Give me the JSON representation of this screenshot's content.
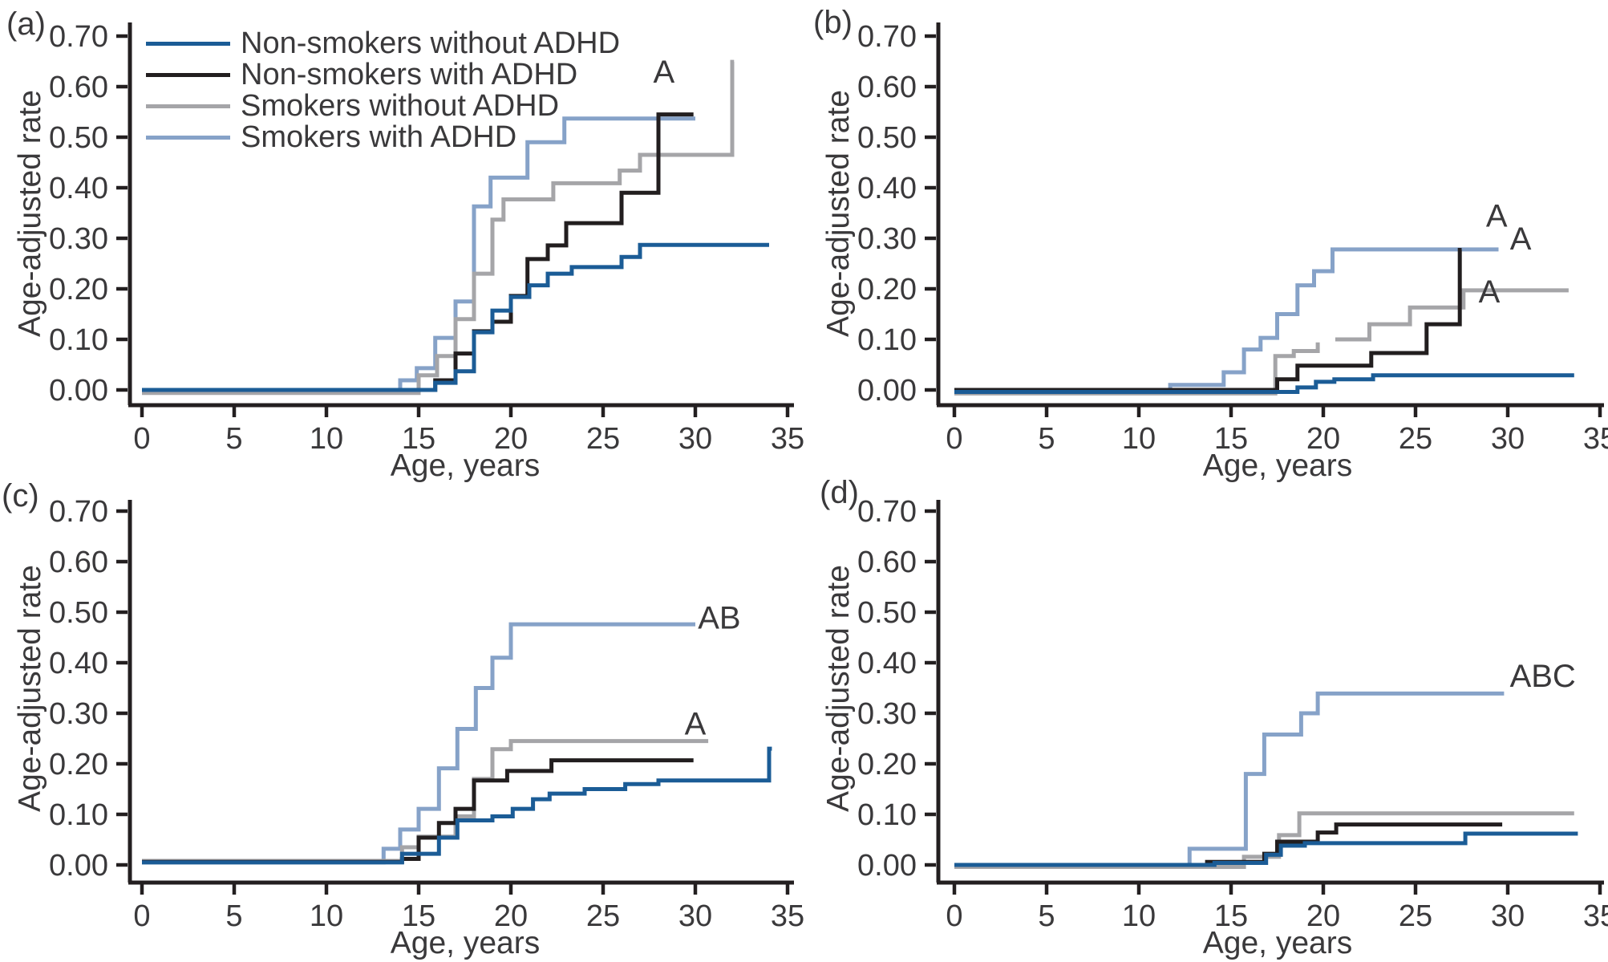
{
  "figure": {
    "legend": {
      "items": [
        {
          "label": "Non-smokers without ADHD",
          "color": "darkblue"
        },
        {
          "label": "Non-smokers with ADHD",
          "color": "black"
        },
        {
          "label": "Smokers without ADHD",
          "color": "gray"
        },
        {
          "label": "Smokers with ADHD",
          "color": "lightblue"
        }
      ]
    },
    "colors": {
      "darkblue": "#1B5C96",
      "black": "#221E1F",
      "gray": "#A5A5A8",
      "lightblue": "#86A2C8",
      "axis": "#231F20",
      "text": "#3A393B"
    }
  },
  "chart_data": [
    {
      "id": "a",
      "panel_label": "(a)",
      "type": "line",
      "subtype": "step-survival",
      "xlabel": "Age, years",
      "ylabel": "Age-adjusted rate",
      "xlim": [
        0,
        35
      ],
      "ylim": [
        0,
        0.7
      ],
      "xticks": [
        "0",
        "5",
        "10",
        "15",
        "20",
        "25",
        "30",
        "35"
      ],
      "yticks": [
        "0.00",
        "0.10",
        "0.20",
        "0.30",
        "0.40",
        "0.50",
        "0.60",
        "0.70"
      ],
      "grid": false,
      "legend_position": "upper-left",
      "annotations": [
        {
          "text": "A",
          "age": 28.3,
          "value": 0.63
        }
      ],
      "series": [
        {
          "name": "Smokers with ADHD",
          "color": "lightblue",
          "segments": [
            {
              "points": [
                [
                  0,
                  0
                ],
                [
                  14,
                  0.019
                ],
                [
                  14.9,
                  0.043
                ],
                [
                  15.9,
                  0.103
                ],
                [
                  17,
                  0.175
                ],
                [
                  18,
                  0.363
                ],
                [
                  18.9,
                  0.42
                ],
                [
                  20.9,
                  0.49
                ],
                [
                  22.9,
                  0.537
                ]
              ],
              "end": 30.0
            }
          ]
        },
        {
          "name": "Smokers without ADHD",
          "color": "gray",
          "segments": [
            {
              "points": [
                [
                  0,
                  -0.006
                ],
                [
                  15,
                  0.029
                ],
                [
                  16,
                  0.067
                ],
                [
                  17,
                  0.14
                ],
                [
                  18,
                  0.23
                ],
                [
                  19,
                  0.337
                ],
                [
                  19.6,
                  0.377
                ],
                [
                  22.3,
                  0.409
                ],
                [
                  25.9,
                  0.434
                ],
                [
                  27,
                  0.465
                ],
                [
                  32,
                  0.649
                ]
              ],
              "end": 32.1
            }
          ]
        },
        {
          "name": "Non-smokers with ADHD",
          "color": "black",
          "segments": [
            {
              "points": [
                [
                  0,
                  0
                ],
                [
                  15.9,
                  0.019
                ],
                [
                  17,
                  0.072
                ],
                [
                  18,
                  0.116
                ],
                [
                  19,
                  0.135
                ],
                [
                  20,
                  0.186
                ],
                [
                  20.9,
                  0.259
                ],
                [
                  22,
                  0.286
                ],
                [
                  23,
                  0.33
                ],
                [
                  26,
                  0.39
                ],
                [
                  28,
                  0.545
                ]
              ],
              "end": 29.9
            }
          ]
        },
        {
          "name": "Non-smokers without ADHD",
          "color": "darkblue",
          "segments": [
            {
              "points": [
                [
                  0,
                  0
                ],
                [
                  15.9,
                  0.014
                ],
                [
                  17,
                  0.037
                ],
                [
                  18,
                  0.114
                ],
                [
                  19,
                  0.157
                ],
                [
                  20,
                  0.184
                ],
                [
                  21,
                  0.207
                ],
                [
                  22,
                  0.23
                ],
                [
                  23.3,
                  0.243
                ],
                [
                  26,
                  0.263
                ],
                [
                  27,
                  0.287
                ]
              ],
              "end": 34.0
            }
          ]
        }
      ]
    },
    {
      "id": "b",
      "panel_label": "(b)",
      "type": "line",
      "subtype": "step-survival",
      "xlabel": "Age, years",
      "ylabel": "Age-adjusted rate",
      "xlim": [
        0,
        35
      ],
      "ylim": [
        0,
        0.7
      ],
      "xticks": [
        "0",
        "5",
        "10",
        "15",
        "20",
        "25",
        "30",
        "35"
      ],
      "yticks": [
        "0.00",
        "0.10",
        "0.20",
        "0.30",
        "0.40",
        "0.50",
        "0.60",
        "0.70"
      ],
      "grid": false,
      "legend_position": "none",
      "annotations": [
        {
          "text": "A",
          "age": 29.4,
          "value": 0.345
        },
        {
          "text": "A",
          "age": 30.7,
          "value": 0.3
        },
        {
          "text": "A",
          "age": 29.0,
          "value": 0.195
        }
      ],
      "series": [
        {
          "name": "Smokers with ADHD",
          "color": "lightblue",
          "segments": [
            {
              "points": [
                [
                  0,
                  0
                ],
                [
                  11.7,
                  0.01
                ],
                [
                  14.6,
                  0.035
                ],
                [
                  15.7,
                  0.08
                ],
                [
                  16.6,
                  0.103
                ],
                [
                  17.5,
                  0.15
                ],
                [
                  18.6,
                  0.207
                ],
                [
                  19.5,
                  0.235
                ],
                [
                  20.5,
                  0.278
                ]
              ],
              "end": 29.5
            }
          ]
        },
        {
          "name": "Smokers without ADHD",
          "color": "gray",
          "segments": [
            {
              "points": [
                [
                  0,
                  -0.007
                ],
                [
                  17.4,
                  0.067
                ],
                [
                  18.4,
                  0.077
                ],
                [
                  19.7,
                  0.094
                ]
              ],
              "end": 19.7
            },
            {
              "points": [
                [
                  20.65,
                  0.1
                ],
                [
                  22.5,
                  0.13
                ],
                [
                  24.7,
                  0.163
                ],
                [
                  27.6,
                  0.197
                ]
              ],
              "end": 33.3
            }
          ]
        },
        {
          "name": "Non-smokers with ADHD",
          "color": "black",
          "segments": [
            {
              "points": [
                [
                  0,
                  0
                ],
                [
                  17.5,
                  0.021
                ],
                [
                  18.6,
                  0.048
                ],
                [
                  22.6,
                  0.073
                ],
                [
                  25.6,
                  0.13
                ],
                [
                  27.4,
                  0.277
                ]
              ],
              "end": 27.5
            }
          ]
        },
        {
          "name": "Non-smokers without ADHD",
          "color": "darkblue",
          "segments": [
            {
              "points": [
                [
                  0,
                  -0.004
                ],
                [
                  18.6,
                  0.005
                ],
                [
                  19.6,
                  0.016
                ],
                [
                  20.6,
                  0.021
                ],
                [
                  22.7,
                  0.029
                ]
              ],
              "end": 33.6
            }
          ]
        }
      ]
    },
    {
      "id": "c",
      "panel_label": "(c)",
      "type": "line",
      "subtype": "step-survival",
      "xlabel": "Age, years",
      "ylabel": "Age-adjusted rate",
      "xlim": [
        0,
        35
      ],
      "ylim": [
        0,
        0.7
      ],
      "xticks": [
        "0",
        "5",
        "10",
        "15",
        "20",
        "25",
        "30",
        "35"
      ],
      "yticks": [
        "0.00",
        "0.10",
        "0.20",
        "0.30",
        "0.40",
        "0.50",
        "0.60",
        "0.70"
      ],
      "grid": false,
      "legend_position": "none",
      "annotations": [
        {
          "text": "AB",
          "age": 31.3,
          "value": 0.49
        },
        {
          "text": "A",
          "age": 30.0,
          "value": 0.28
        }
      ],
      "series": [
        {
          "name": "Smokers with ADHD",
          "color": "lightblue",
          "segments": [
            {
              "points": [
                [
                  0,
                  0.005
                ],
                [
                  13.1,
                  0.032
                ],
                [
                  14,
                  0.07
                ],
                [
                  15,
                  0.111
                ],
                [
                  16.1,
                  0.191
                ],
                [
                  17.1,
                  0.269
                ],
                [
                  18.1,
                  0.35
                ],
                [
                  19,
                  0.41
                ],
                [
                  20,
                  0.476
                ]
              ],
              "end": 30.0
            }
          ]
        },
        {
          "name": "Smokers without ADHD",
          "color": "gray",
          "segments": [
            {
              "points": [
                [
                  0,
                  0.008
                ],
                [
                  14.1,
                  0.035
                ],
                [
                  15,
                  0.056
                ],
                [
                  17,
                  0.096
                ],
                [
                  18,
                  0.17
                ],
                [
                  19,
                  0.229
                ],
                [
                  20,
                  0.245
                ]
              ],
              "end": 30.7
            }
          ]
        },
        {
          "name": "Non-smokers with ADHD",
          "color": "black",
          "segments": [
            {
              "points": [
                [
                  0,
                  0.006
                ],
                [
                  14.1,
                  0.012
                ],
                [
                  15,
                  0.054
                ],
                [
                  16.1,
                  0.083
                ],
                [
                  17,
                  0.111
                ],
                [
                  18,
                  0.167
                ],
                [
                  19.8,
                  0.186
                ],
                [
                  22.2,
                  0.207
                ]
              ],
              "end": 29.9
            }
          ]
        },
        {
          "name": "Non-smokers without ADHD",
          "color": "darkblue",
          "segments": [
            {
              "points": [
                [
                  0,
                  0.005
                ],
                [
                  14.1,
                  0.022
                ],
                [
                  16.1,
                  0.054
                ],
                [
                  17.1,
                  0.088
                ],
                [
                  19,
                  0.096
                ],
                [
                  20.1,
                  0.111
                ],
                [
                  21.2,
                  0.13
                ],
                [
                  22.1,
                  0.141
                ],
                [
                  24,
                  0.15
                ],
                [
                  26.2,
                  0.16
                ],
                [
                  28,
                  0.167
                ],
                [
                  34,
                  0.23
                ]
              ],
              "end": 34.15
            }
          ]
        }
      ]
    },
    {
      "id": "d",
      "panel_label": "(d)",
      "type": "line",
      "subtype": "step-survival",
      "xlabel": "Age, years",
      "ylabel": "Age-adjusted rate",
      "xlim": [
        0,
        35
      ],
      "ylim": [
        0,
        0.7
      ],
      "xticks": [
        "0",
        "5",
        "10",
        "15",
        "20",
        "25",
        "30",
        "35"
      ],
      "yticks": [
        "0.00",
        "0.10",
        "0.20",
        "0.30",
        "0.40",
        "0.50",
        "0.60",
        "0.70"
      ],
      "grid": false,
      "legend_position": "none",
      "annotations": [
        {
          "text": "ABC",
          "age": 31.9,
          "value": 0.375
        }
      ],
      "series": [
        {
          "name": "Smokers with ADHD",
          "color": "lightblue",
          "segments": [
            {
              "points": [
                [
                  0,
                  0
                ],
                [
                  12.75,
                  0.032
                ],
                [
                  15.8,
                  0.18
                ],
                [
                  16.8,
                  0.258
                ],
                [
                  18.8,
                  0.3
                ],
                [
                  19.7,
                  0.339
                ]
              ],
              "end": 29.8
            }
          ]
        },
        {
          "name": "Smokers without ADHD",
          "color": "gray",
          "segments": [
            {
              "points": [
                [
                  0,
                  -0.004
                ],
                [
                  15.7,
                  0.016
                ],
                [
                  17.6,
                  0.059
                ],
                [
                  18.7,
                  0.102
                ]
              ],
              "end": 33.6
            }
          ]
        },
        {
          "name": "Non-smokers with ADHD",
          "color": "black",
          "segments": [
            {
              "points": [
                [
                  0,
                  0
                ],
                [
                  13.7,
                  0.006
                ],
                [
                  16.8,
                  0.022
                ],
                [
                  17.5,
                  0.046
                ],
                [
                  19.7,
                  0.064
                ],
                [
                  20.7,
                  0.08
                ]
              ],
              "end": 29.7
            }
          ]
        },
        {
          "name": "Non-smokers without ADHD",
          "color": "darkblue",
          "segments": [
            {
              "points": [
                [
                  0,
                  0
                ],
                [
                  14.1,
                  0.004
                ],
                [
                  16.9,
                  0.02
                ],
                [
                  17.7,
                  0.038
                ],
                [
                  19,
                  0.043
                ],
                [
                  27.7,
                  0.062
                ]
              ],
              "end": 33.8
            }
          ]
        }
      ]
    }
  ]
}
